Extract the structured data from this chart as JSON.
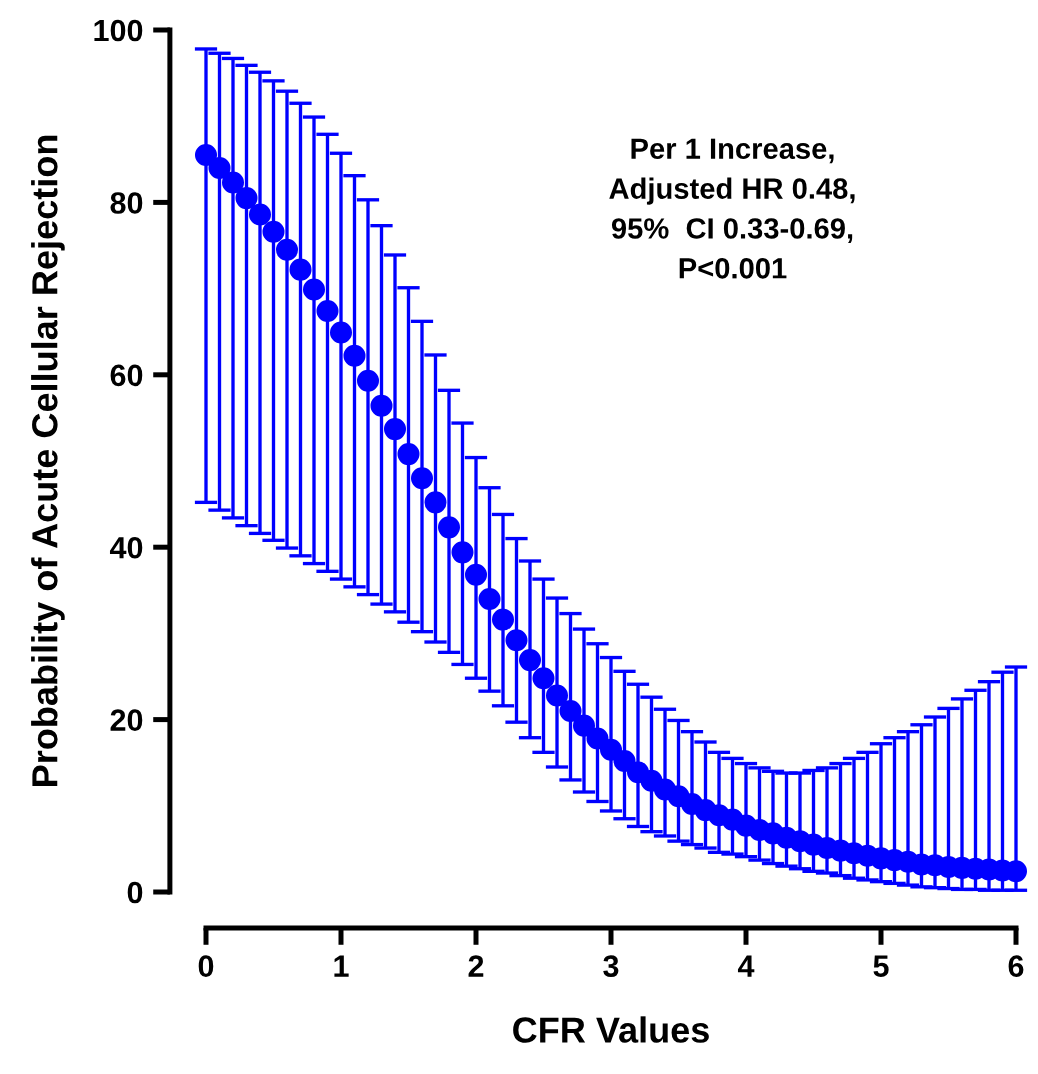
{
  "chart_data": {
    "type": "scatter",
    "xlabel": "CFR Values",
    "ylabel": "Probability of Acute Cellular Rejection",
    "annotations": [
      "Per 1 Increase,\nAdjusted HR 0.48,\n95%  CI 0.33-0.69,\nP<0.001"
    ],
    "xlim": [
      0,
      6
    ],
    "xticks": [
      0,
      1,
      2,
      3,
      4,
      5,
      6
    ],
    "ylim": [
      0,
      100
    ],
    "yticks": [
      0,
      20,
      40,
      60,
      80,
      100
    ],
    "grid": false,
    "marker": "circle",
    "series": [
      {
        "color": "#0000ff",
        "x": [
          0,
          0.1,
          0.2,
          0.3,
          0.4,
          0.5,
          0.6,
          0.7,
          0.8,
          0.9,
          1.0,
          1.1,
          1.2,
          1.3,
          1.4,
          1.5,
          1.6,
          1.7,
          1.8,
          1.9,
          2.0,
          2.1,
          2.2,
          2.3,
          2.4,
          2.5,
          2.6,
          2.7,
          2.8,
          2.9,
          3.0,
          3.1,
          3.2,
          3.3,
          3.4,
          3.5,
          3.6,
          3.7,
          3.8,
          3.9,
          4.0,
          4.1,
          4.2,
          4.3,
          4.4,
          4.5,
          4.6,
          4.7,
          4.8,
          4.9,
          5.0,
          5.1,
          5.2,
          5.3,
          5.4,
          5.5,
          5.6,
          5.7,
          5.8,
          5.9,
          6.0
        ],
        "values": [
          85.5,
          84.0,
          82.3,
          80.5,
          78.6,
          76.6,
          74.5,
          72.2,
          69.9,
          67.4,
          64.9,
          62.2,
          59.3,
          56.4,
          53.7,
          50.8,
          48.0,
          45.2,
          42.3,
          39.4,
          36.8,
          34.0,
          31.6,
          29.2,
          26.9,
          24.8,
          22.8,
          21.0,
          19.3,
          17.8,
          16.5,
          15.2,
          13.9,
          12.9,
          11.9,
          11.1,
          10.2,
          9.5,
          8.9,
          8.4,
          7.7,
          7.2,
          6.8,
          6.3,
          5.9,
          5.5,
          5.1,
          4.8,
          4.5,
          4.2,
          3.9,
          3.7,
          3.5,
          3.2,
          3.1,
          2.9,
          2.8,
          2.7,
          2.6,
          2.5,
          2.4
        ],
        "errors": [
          [
            45.2,
            97.8
          ],
          [
            44.3,
            97.3
          ],
          [
            43.4,
            96.7
          ],
          [
            42.5,
            95.9
          ],
          [
            41.6,
            95.1
          ],
          [
            40.8,
            94.1
          ],
          [
            39.9,
            92.9
          ],
          [
            39.0,
            91.5
          ],
          [
            38.1,
            89.9
          ],
          [
            37.2,
            87.9
          ],
          [
            36.3,
            85.7
          ],
          [
            35.4,
            83.1
          ],
          [
            34.5,
            80.3
          ],
          [
            33.4,
            77.3
          ],
          [
            32.5,
            73.9
          ],
          [
            31.3,
            70.1
          ],
          [
            30.2,
            66.2
          ],
          [
            29.0,
            62.3
          ],
          [
            27.8,
            58.2
          ],
          [
            26.4,
            54.4
          ],
          [
            24.8,
            50.4
          ],
          [
            23.3,
            46.9
          ],
          [
            21.6,
            43.8
          ],
          [
            19.7,
            41.0
          ],
          [
            17.9,
            38.4
          ],
          [
            16.2,
            36.3
          ],
          [
            14.5,
            34.1
          ],
          [
            13.0,
            32.3
          ],
          [
            11.6,
            30.5
          ],
          [
            10.5,
            28.8
          ],
          [
            9.4,
            27.2
          ],
          [
            8.5,
            25.6
          ],
          [
            7.6,
            24.1
          ],
          [
            7.0,
            22.6
          ],
          [
            6.5,
            21.2
          ],
          [
            5.9,
            19.9
          ],
          [
            5.5,
            18.6
          ],
          [
            5.1,
            17.4
          ],
          [
            4.6,
            16.2
          ],
          [
            4.4,
            15.5
          ],
          [
            4.1,
            14.9
          ],
          [
            3.7,
            14.4
          ],
          [
            3.3,
            14.0
          ],
          [
            3.0,
            13.8
          ],
          [
            2.7,
            13.8
          ],
          [
            2.4,
            14.1
          ],
          [
            2.2,
            14.4
          ],
          [
            1.9,
            14.9
          ],
          [
            1.6,
            15.5
          ],
          [
            1.4,
            16.2
          ],
          [
            1.2,
            17.2
          ],
          [
            1.0,
            17.9
          ],
          [
            0.8,
            18.6
          ],
          [
            0.6,
            19.4
          ],
          [
            0.5,
            20.3
          ],
          [
            0.4,
            21.3
          ],
          [
            0.3,
            22.4
          ],
          [
            0.3,
            23.4
          ],
          [
            0.2,
            24.4
          ],
          [
            0.2,
            25.5
          ],
          [
            0.2,
            26.1
          ]
        ]
      }
    ]
  }
}
